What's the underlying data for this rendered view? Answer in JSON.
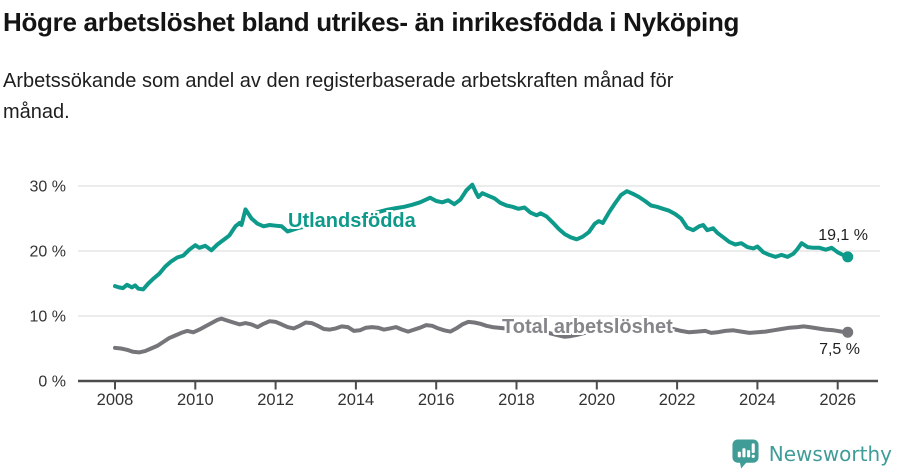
{
  "chart_data": {
    "type": "line",
    "title": "Högre arbetslöshet bland utrikes- än inrikesfödda i Nyköping",
    "subtitle_lines": [
      "Arbetssökande som andel av den registerbaserade arbetskraften månad för",
      "månad."
    ],
    "unit": "%",
    "grid": "horizontal",
    "legend_position": "inline-labels",
    "axis": {
      "ylim": [
        0,
        31
      ],
      "xlim": [
        2008,
        2026.3
      ],
      "y_ticks": [
        0,
        10,
        20,
        30
      ],
      "y_tick_labels": [
        "0 %",
        "10 %",
        "20 %",
        "30 %"
      ],
      "x_ticks": [
        2008,
        2010,
        2012,
        2014,
        2016,
        2018,
        2020,
        2022,
        2024,
        2026
      ],
      "x_tick_labels": [
        "2008",
        "2010",
        "2012",
        "2014",
        "2016",
        "2018",
        "2020",
        "2022",
        "2024",
        "2026"
      ]
    },
    "series": [
      {
        "id": "utlandsfodda",
        "name": "Utlandsfödda",
        "color": "#0e9a8b",
        "end_label": "19,1 %",
        "end_value": 19.1,
        "points": [
          [
            2008.0,
            14.6
          ],
          [
            2008.1,
            14.4
          ],
          [
            2008.2,
            14.3
          ],
          [
            2008.3,
            14.8
          ],
          [
            2008.42,
            14.4
          ],
          [
            2008.5,
            14.7
          ],
          [
            2008.58,
            14.2
          ],
          [
            2008.7,
            14.1
          ],
          [
            2008.83,
            15.0
          ],
          [
            2008.95,
            15.7
          ],
          [
            2009.1,
            16.5
          ],
          [
            2009.25,
            17.6
          ],
          [
            2009.4,
            18.4
          ],
          [
            2009.55,
            19.0
          ],
          [
            2009.7,
            19.3
          ],
          [
            2009.85,
            20.2
          ],
          [
            2010.0,
            20.9
          ],
          [
            2010.1,
            20.5
          ],
          [
            2010.25,
            20.8
          ],
          [
            2010.4,
            20.1
          ],
          [
            2010.55,
            21.0
          ],
          [
            2010.7,
            21.7
          ],
          [
            2010.85,
            22.4
          ],
          [
            2011.0,
            23.8
          ],
          [
            2011.1,
            24.3
          ],
          [
            2011.15,
            24.0
          ],
          [
            2011.25,
            26.4
          ],
          [
            2011.4,
            25.0
          ],
          [
            2011.55,
            24.2
          ],
          [
            2011.7,
            23.8
          ],
          [
            2011.85,
            24.0
          ],
          [
            2012.0,
            23.9
          ],
          [
            2012.15,
            23.8
          ],
          [
            2012.3,
            23.0
          ],
          [
            2012.45,
            23.3
          ],
          [
            2012.6,
            23.6
          ],
          [
            2012.8,
            23.8
          ],
          [
            2013.0,
            24.1
          ],
          [
            2013.25,
            24.3
          ],
          [
            2013.5,
            24.6
          ],
          [
            2013.75,
            24.9
          ],
          [
            2014.0,
            25.2
          ],
          [
            2014.25,
            25.6
          ],
          [
            2014.5,
            25.9
          ],
          [
            2014.75,
            26.3
          ],
          [
            2015.0,
            26.6
          ],
          [
            2015.2,
            26.8
          ],
          [
            2015.4,
            27.1
          ],
          [
            2015.6,
            27.5
          ],
          [
            2015.85,
            28.2
          ],
          [
            2016.0,
            27.7
          ],
          [
            2016.15,
            27.5
          ],
          [
            2016.3,
            27.8
          ],
          [
            2016.45,
            27.2
          ],
          [
            2016.6,
            27.9
          ],
          [
            2016.75,
            29.3
          ],
          [
            2016.9,
            30.2
          ],
          [
            2017.0,
            28.9
          ],
          [
            2017.05,
            28.3
          ],
          [
            2017.15,
            28.9
          ],
          [
            2017.3,
            28.5
          ],
          [
            2017.45,
            28.1
          ],
          [
            2017.6,
            27.4
          ],
          [
            2017.75,
            27.0
          ],
          [
            2017.9,
            26.8
          ],
          [
            2018.05,
            26.5
          ],
          [
            2018.2,
            26.7
          ],
          [
            2018.35,
            25.9
          ],
          [
            2018.5,
            25.5
          ],
          [
            2018.6,
            25.8
          ],
          [
            2018.75,
            25.3
          ],
          [
            2018.9,
            24.4
          ],
          [
            2019.05,
            23.4
          ],
          [
            2019.2,
            22.6
          ],
          [
            2019.35,
            22.1
          ],
          [
            2019.5,
            21.8
          ],
          [
            2019.65,
            22.2
          ],
          [
            2019.8,
            22.9
          ],
          [
            2019.95,
            24.2
          ],
          [
            2020.05,
            24.6
          ],
          [
            2020.15,
            24.3
          ],
          [
            2020.3,
            25.9
          ],
          [
            2020.45,
            27.3
          ],
          [
            2020.6,
            28.6
          ],
          [
            2020.75,
            29.2
          ],
          [
            2020.9,
            28.8
          ],
          [
            2021.05,
            28.3
          ],
          [
            2021.2,
            27.7
          ],
          [
            2021.35,
            27.0
          ],
          [
            2021.5,
            26.8
          ],
          [
            2021.65,
            26.5
          ],
          [
            2021.8,
            26.2
          ],
          [
            2021.95,
            25.7
          ],
          [
            2022.1,
            25.0
          ],
          [
            2022.25,
            23.6
          ],
          [
            2022.4,
            23.2
          ],
          [
            2022.55,
            23.8
          ],
          [
            2022.65,
            24.0
          ],
          [
            2022.75,
            23.2
          ],
          [
            2022.9,
            23.5
          ],
          [
            2023.0,
            22.8
          ],
          [
            2023.15,
            22.1
          ],
          [
            2023.3,
            21.4
          ],
          [
            2023.45,
            21.0
          ],
          [
            2023.6,
            21.2
          ],
          [
            2023.75,
            20.6
          ],
          [
            2023.9,
            20.4
          ],
          [
            2024.0,
            20.7
          ],
          [
            2024.15,
            19.8
          ],
          [
            2024.3,
            19.4
          ],
          [
            2024.45,
            19.1
          ],
          [
            2024.6,
            19.4
          ],
          [
            2024.75,
            19.1
          ],
          [
            2024.9,
            19.6
          ],
          [
            2025.0,
            20.3
          ],
          [
            2025.1,
            21.2
          ],
          [
            2025.25,
            20.6
          ],
          [
            2025.4,
            20.5
          ],
          [
            2025.55,
            20.5
          ],
          [
            2025.7,
            20.2
          ],
          [
            2025.85,
            20.5
          ],
          [
            2026.0,
            19.8
          ],
          [
            2026.1,
            19.5
          ],
          [
            2026.25,
            19.1
          ]
        ]
      },
      {
        "id": "total",
        "name": "Total arbetslöshet",
        "color": "#76767a",
        "end_label": "7,5 %",
        "end_value": 7.5,
        "points": [
          [
            2008.0,
            5.1
          ],
          [
            2008.15,
            5.0
          ],
          [
            2008.3,
            4.8
          ],
          [
            2008.45,
            4.5
          ],
          [
            2008.6,
            4.4
          ],
          [
            2008.75,
            4.6
          ],
          [
            2008.9,
            5.0
          ],
          [
            2009.05,
            5.4
          ],
          [
            2009.2,
            6.0
          ],
          [
            2009.35,
            6.6
          ],
          [
            2009.5,
            7.0
          ],
          [
            2009.65,
            7.4
          ],
          [
            2009.8,
            7.7
          ],
          [
            2009.95,
            7.5
          ],
          [
            2010.1,
            7.9
          ],
          [
            2010.25,
            8.4
          ],
          [
            2010.4,
            8.9
          ],
          [
            2010.55,
            9.4
          ],
          [
            2010.65,
            9.6
          ],
          [
            2010.8,
            9.3
          ],
          [
            2010.95,
            9.0
          ],
          [
            2011.1,
            8.7
          ],
          [
            2011.25,
            8.9
          ],
          [
            2011.4,
            8.7
          ],
          [
            2011.55,
            8.3
          ],
          [
            2011.7,
            8.8
          ],
          [
            2011.85,
            9.2
          ],
          [
            2012.0,
            9.1
          ],
          [
            2012.15,
            8.7
          ],
          [
            2012.3,
            8.3
          ],
          [
            2012.45,
            8.1
          ],
          [
            2012.6,
            8.5
          ],
          [
            2012.75,
            9.0
          ],
          [
            2012.9,
            8.9
          ],
          [
            2013.05,
            8.5
          ],
          [
            2013.2,
            8.0
          ],
          [
            2013.35,
            7.9
          ],
          [
            2013.5,
            8.1
          ],
          [
            2013.65,
            8.4
          ],
          [
            2013.8,
            8.3
          ],
          [
            2013.95,
            7.7
          ],
          [
            2014.1,
            7.8
          ],
          [
            2014.25,
            8.2
          ],
          [
            2014.4,
            8.3
          ],
          [
            2014.55,
            8.2
          ],
          [
            2014.7,
            7.9
          ],
          [
            2014.85,
            8.1
          ],
          [
            2015.0,
            8.3
          ],
          [
            2015.15,
            7.9
          ],
          [
            2015.3,
            7.6
          ],
          [
            2015.45,
            7.9
          ],
          [
            2015.6,
            8.2
          ],
          [
            2015.75,
            8.6
          ],
          [
            2015.9,
            8.5
          ],
          [
            2016.05,
            8.1
          ],
          [
            2016.2,
            7.8
          ],
          [
            2016.35,
            7.6
          ],
          [
            2016.5,
            8.1
          ],
          [
            2016.65,
            8.7
          ],
          [
            2016.8,
            9.1
          ],
          [
            2016.95,
            9.0
          ],
          [
            2017.1,
            8.8
          ],
          [
            2017.25,
            8.5
          ],
          [
            2017.4,
            8.3
          ],
          [
            2017.55,
            8.2
          ],
          [
            2017.7,
            8.1
          ],
          [
            2017.85,
            8.2
          ],
          [
            2018.0,
            8.3
          ],
          [
            2018.2,
            8.0
          ],
          [
            2018.4,
            7.8
          ],
          [
            2018.6,
            7.6
          ],
          [
            2018.8,
            7.4
          ],
          [
            2019.0,
            7.1
          ],
          [
            2019.2,
            6.8
          ],
          [
            2019.35,
            6.9
          ],
          [
            2019.5,
            7.1
          ],
          [
            2019.7,
            7.4
          ],
          [
            2019.9,
            7.7
          ],
          [
            2020.1,
            8.1
          ],
          [
            2020.3,
            8.6
          ],
          [
            2020.5,
            8.9
          ],
          [
            2020.7,
            9.0
          ],
          [
            2020.9,
            8.8
          ],
          [
            2021.1,
            8.6
          ],
          [
            2021.3,
            8.4
          ],
          [
            2021.5,
            8.3
          ],
          [
            2021.7,
            8.1
          ],
          [
            2021.9,
            8.0
          ],
          [
            2022.1,
            7.7
          ],
          [
            2022.3,
            7.5
          ],
          [
            2022.5,
            7.6
          ],
          [
            2022.7,
            7.7
          ],
          [
            2022.85,
            7.4
          ],
          [
            2023.0,
            7.5
          ],
          [
            2023.2,
            7.7
          ],
          [
            2023.4,
            7.8
          ],
          [
            2023.6,
            7.6
          ],
          [
            2023.8,
            7.4
          ],
          [
            2024.0,
            7.5
          ],
          [
            2024.2,
            7.6
          ],
          [
            2024.4,
            7.8
          ],
          [
            2024.6,
            8.0
          ],
          [
            2024.8,
            8.2
          ],
          [
            2025.0,
            8.3
          ],
          [
            2025.15,
            8.4
          ],
          [
            2025.3,
            8.3
          ],
          [
            2025.5,
            8.1
          ],
          [
            2025.7,
            7.9
          ],
          [
            2025.9,
            7.8
          ],
          [
            2026.1,
            7.6
          ],
          [
            2026.25,
            7.5
          ]
        ]
      }
    ],
    "colors": {
      "grid": "#e1e1e1",
      "axis": "#4c4c4c",
      "tick_text": "#333333"
    }
  },
  "footer": {
    "brand": "Newsworthy",
    "brand_color": "#3f9c97",
    "logo_icon": "newsworthy-speech-bubble-bar-chart-icon"
  }
}
